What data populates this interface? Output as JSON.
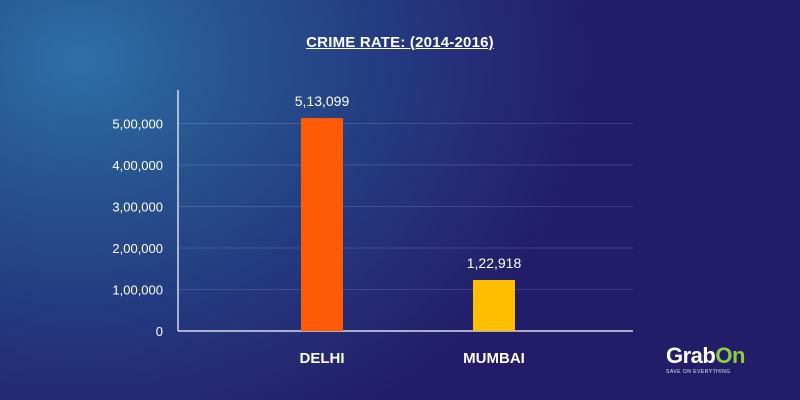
{
  "chart_data": {
    "type": "bar",
    "title": "CRIME RATE: (2014-2016)",
    "categories": [
      "DELHI",
      "MUMBAI"
    ],
    "values": [
      513099,
      122918
    ],
    "value_labels": [
      "5,13,099",
      "1,22,918"
    ],
    "bar_colors": [
      "#ff5a05",
      "#ffbe00"
    ],
    "yticks": [
      0,
      100000,
      200000,
      300000,
      400000,
      500000
    ],
    "ytick_labels": [
      "0",
      "1,00,000",
      "2,00,000",
      "3,00,000",
      "4,00,000",
      "5,00,000"
    ],
    "ylim": [
      0,
      500000
    ],
    "grid": true,
    "xlabel": "",
    "ylabel": ""
  },
  "brand": {
    "name_part1": "Grab",
    "name_part2": "On",
    "tagline": "SAVE ON EVERYTHING",
    "accent_color": "#8ccf3f"
  }
}
